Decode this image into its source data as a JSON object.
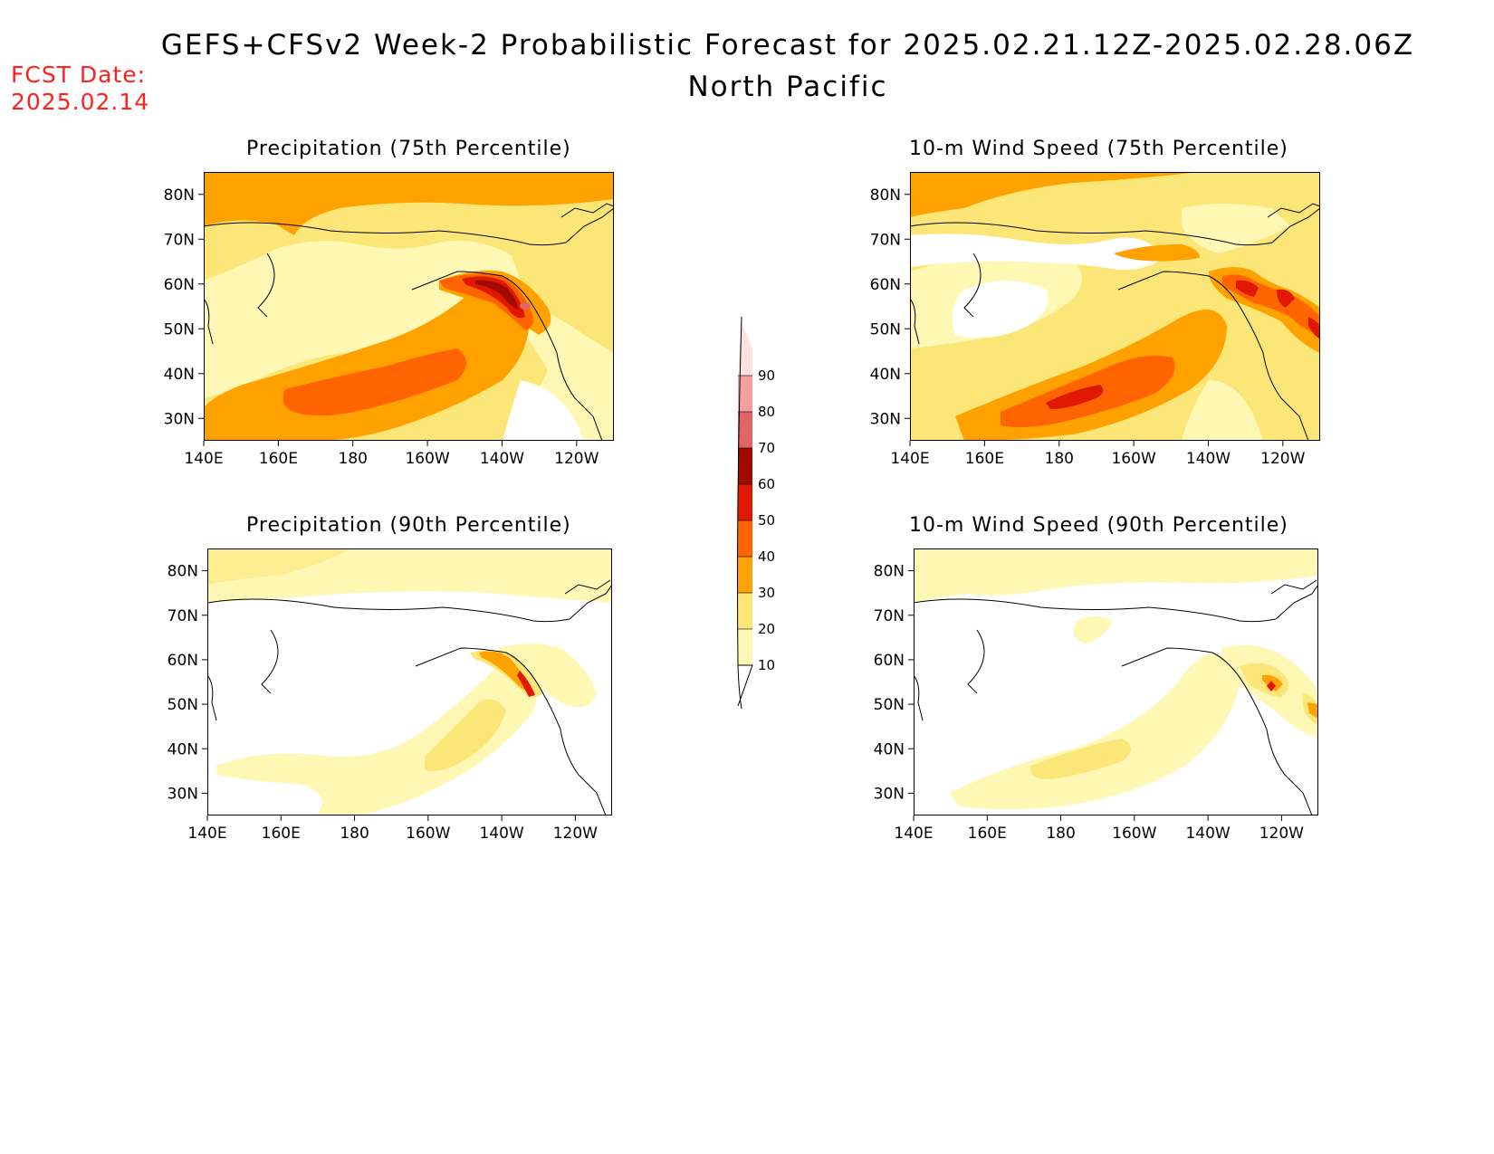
{
  "header": {
    "title": "GEFS+CFSv2 Week-2 Probabilistic Forecast for 2025.02.21.12Z-2025.02.28.06Z",
    "subtitle": "North Pacific",
    "fcst_label": "FCST Date:",
    "fcst_date": "2025.02.14"
  },
  "panels": [
    {
      "title": "Precipitation (75th Percentile)"
    },
    {
      "title": "10-m Wind Speed (75th Percentile)"
    },
    {
      "title": "Precipitation (90th Percentile)"
    },
    {
      "title": "10-m Wind Speed (90th Percentile)"
    }
  ],
  "axes": {
    "lat_ticks": [
      "80N",
      "70N",
      "60N",
      "50N",
      "40N",
      "30N"
    ],
    "lon_ticks": [
      "140E",
      "160E",
      "180",
      "160W",
      "140W",
      "120W"
    ]
  },
  "colorbar": {
    "levels": [
      "10",
      "20",
      "30",
      "40",
      "50",
      "60",
      "70",
      "80",
      "90"
    ],
    "colors": [
      "#fff8b4",
      "#fde678",
      "#ffa200",
      "#ff6400",
      "#e01800",
      "#a00a00",
      "#e06666",
      "#f4a0a0",
      "#fde0e0"
    ]
  }
}
